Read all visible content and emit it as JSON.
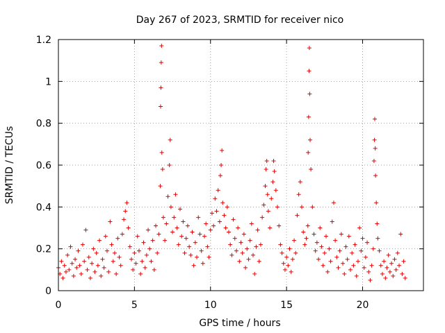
{
  "chart_data": {
    "type": "scatter",
    "title": "Day 267 of 2023, SRMTID for receiver nico",
    "xlabel": "GPS time / hours",
    "ylabel": "SRMTID / TECUs",
    "xlim": [
      0,
      24
    ],
    "ylim": [
      0,
      1.2
    ],
    "xticks": [
      0,
      5,
      10,
      15,
      20
    ],
    "yticks": [
      0,
      0.2,
      0.4,
      0.6,
      0.8,
      1.0,
      1.2
    ],
    "xtick_labels": [
      "0",
      "5",
      "10",
      "15",
      "20"
    ],
    "ytick_labels": [
      "0",
      "0.2",
      "0.4",
      "0.6",
      "0.8",
      "1",
      "1.2"
    ],
    "grid": true,
    "marker": "+",
    "color": "#e00000",
    "series": [
      {
        "name": "SRMTID",
        "points": [
          [
            0.0,
            0.11
          ],
          [
            0.1,
            0.08
          ],
          [
            0.2,
            0.14
          ],
          [
            0.3,
            0.06
          ],
          [
            0.4,
            0.12
          ],
          [
            0.5,
            0.09
          ],
          [
            0.6,
            0.17
          ],
          [
            0.7,
            0.1
          ],
          [
            0.8,
            0.21
          ],
          [
            0.9,
            0.13
          ],
          [
            1.0,
            0.07
          ],
          [
            1.1,
            0.15
          ],
          [
            1.2,
            0.11
          ],
          [
            1.3,
            0.19
          ],
          [
            1.4,
            0.12
          ],
          [
            1.5,
            0.08
          ],
          [
            1.6,
            0.22
          ],
          [
            1.7,
            0.14
          ],
          [
            1.8,
            0.29
          ],
          [
            1.9,
            0.1
          ],
          [
            2.0,
            0.16
          ],
          [
            2.1,
            0.06
          ],
          [
            2.2,
            0.13
          ],
          [
            2.3,
            0.2
          ],
          [
            2.4,
            0.09
          ],
          [
            2.5,
            0.18
          ],
          [
            2.6,
            0.12
          ],
          [
            2.7,
            0.24
          ],
          [
            2.8,
            0.07
          ],
          [
            2.9,
            0.15
          ],
          [
            3.0,
            0.11
          ],
          [
            3.1,
            0.26
          ],
          [
            3.2,
            0.19
          ],
          [
            3.3,
            0.09
          ],
          [
            3.4,
            0.33
          ],
          [
            3.5,
            0.22
          ],
          [
            3.6,
            0.14
          ],
          [
            3.7,
            0.18
          ],
          [
            3.8,
            0.08
          ],
          [
            3.9,
            0.25
          ],
          [
            4.0,
            0.16
          ],
          [
            4.1,
            0.12
          ],
          [
            4.2,
            0.27
          ],
          [
            4.3,
            0.34
          ],
          [
            4.4,
            0.38
          ],
          [
            4.5,
            0.42
          ],
          [
            4.6,
            0.3
          ],
          [
            4.7,
            0.21
          ],
          [
            4.8,
            0.15
          ],
          [
            4.9,
            0.1
          ],
          [
            5.0,
            0.18
          ],
          [
            5.1,
            0.13
          ],
          [
            5.2,
            0.26
          ],
          [
            5.3,
            0.19
          ],
          [
            5.4,
            0.08
          ],
          [
            5.5,
            0.14
          ],
          [
            5.6,
            0.23
          ],
          [
            5.7,
            0.11
          ],
          [
            5.8,
            0.17
          ],
          [
            5.9,
            0.29
          ],
          [
            6.0,
            0.2
          ],
          [
            6.1,
            0.14
          ],
          [
            6.2,
            0.24
          ],
          [
            6.3,
            0.1
          ],
          [
            6.4,
            0.31
          ],
          [
            6.5,
            0.18
          ],
          [
            6.6,
            0.27
          ],
          [
            6.7,
            0.5
          ],
          [
            6.72,
            0.88
          ],
          [
            6.74,
            0.97
          ],
          [
            6.76,
            1.09
          ],
          [
            6.78,
            1.17
          ],
          [
            6.8,
            0.66
          ],
          [
            6.85,
            0.58
          ],
          [
            6.9,
            0.35
          ],
          [
            7.0,
            0.24
          ],
          [
            7.1,
            0.32
          ],
          [
            7.2,
            0.45
          ],
          [
            7.3,
            0.6
          ],
          [
            7.35,
            0.72
          ],
          [
            7.4,
            0.4
          ],
          [
            7.5,
            0.28
          ],
          [
            7.6,
            0.35
          ],
          [
            7.7,
            0.46
          ],
          [
            7.8,
            0.3
          ],
          [
            7.9,
            0.22
          ],
          [
            8.0,
            0.39
          ],
          [
            8.1,
            0.26
          ],
          [
            8.2,
            0.33
          ],
          [
            8.3,
            0.18
          ],
          [
            8.4,
            0.25
          ],
          [
            8.5,
            0.31
          ],
          [
            8.6,
            0.21
          ],
          [
            8.7,
            0.17
          ],
          [
            8.8,
            0.28
          ],
          [
            8.9,
            0.12
          ],
          [
            9.0,
            0.23
          ],
          [
            9.1,
            0.16
          ],
          [
            9.2,
            0.35
          ],
          [
            9.3,
            0.27
          ],
          [
            9.4,
            0.19
          ],
          [
            9.5,
            0.13
          ],
          [
            9.6,
            0.26
          ],
          [
            9.7,
            0.32
          ],
          [
            9.8,
            0.21
          ],
          [
            9.9,
            0.16
          ],
          [
            10.0,
            0.29
          ],
          [
            10.1,
            0.37
          ],
          [
            10.2,
            0.31
          ],
          [
            10.3,
            0.44
          ],
          [
            10.4,
            0.38
          ],
          [
            10.5,
            0.48
          ],
          [
            10.6,
            0.33
          ],
          [
            10.65,
            0.55
          ],
          [
            10.7,
            0.6
          ],
          [
            10.75,
            0.67
          ],
          [
            10.8,
            0.42
          ],
          [
            10.9,
            0.36
          ],
          [
            11.0,
            0.3
          ],
          [
            11.1,
            0.4
          ],
          [
            11.2,
            0.28
          ],
          [
            11.3,
            0.22
          ],
          [
            11.4,
            0.17
          ],
          [
            11.5,
            0.34
          ],
          [
            11.6,
            0.25
          ],
          [
            11.7,
            0.19
          ],
          [
            11.8,
            0.3
          ],
          [
            11.9,
            0.14
          ],
          [
            12.0,
            0.23
          ],
          [
            12.1,
            0.18
          ],
          [
            12.2,
            0.27
          ],
          [
            12.3,
            0.11
          ],
          [
            12.4,
            0.2
          ],
          [
            12.5,
            0.15
          ],
          [
            12.6,
            0.24
          ],
          [
            12.7,
            0.32
          ],
          [
            12.8,
            0.17
          ],
          [
            12.9,
            0.08
          ],
          [
            13.0,
            0.21
          ],
          [
            13.1,
            0.29
          ],
          [
            13.2,
            0.14
          ],
          [
            13.3,
            0.22
          ],
          [
            13.4,
            0.35
          ],
          [
            13.5,
            0.41
          ],
          [
            13.6,
            0.5
          ],
          [
            13.65,
            0.58
          ],
          [
            13.7,
            0.62
          ],
          [
            13.75,
            0.46
          ],
          [
            13.8,
            0.38
          ],
          [
            13.9,
            0.3
          ],
          [
            14.0,
            0.44
          ],
          [
            14.1,
            0.52
          ],
          [
            14.15,
            0.62
          ],
          [
            14.2,
            0.57
          ],
          [
            14.3,
            0.48
          ],
          [
            14.4,
            0.4
          ],
          [
            14.5,
            0.31
          ],
          [
            14.6,
            0.22
          ],
          [
            14.7,
            0.18
          ],
          [
            14.8,
            0.13
          ],
          [
            14.9,
            0.1
          ],
          [
            15.0,
            0.16
          ],
          [
            15.1,
            0.12
          ],
          [
            15.2,
            0.2
          ],
          [
            15.3,
            0.09
          ],
          [
            15.4,
            0.15
          ],
          [
            15.5,
            0.24
          ],
          [
            15.6,
            0.18
          ],
          [
            15.7,
            0.36
          ],
          [
            15.8,
            0.46
          ],
          [
            15.9,
            0.52
          ],
          [
            16.0,
            0.4
          ],
          [
            16.1,
            0.28
          ],
          [
            16.2,
            0.22
          ],
          [
            16.3,
            0.25
          ],
          [
            16.4,
            0.31
          ],
          [
            16.42,
            0.66
          ],
          [
            16.45,
            0.83
          ],
          [
            16.48,
            1.05
          ],
          [
            16.5,
            1.16
          ],
          [
            16.52,
            0.94
          ],
          [
            16.55,
            0.72
          ],
          [
            16.6,
            0.58
          ],
          [
            16.7,
            0.4
          ],
          [
            16.8,
            0.27
          ],
          [
            16.9,
            0.19
          ],
          [
            17.0,
            0.23
          ],
          [
            17.1,
            0.15
          ],
          [
            17.2,
            0.3
          ],
          [
            17.3,
            0.21
          ],
          [
            17.4,
            0.12
          ],
          [
            17.5,
            0.18
          ],
          [
            17.6,
            0.26
          ],
          [
            17.7,
            0.09
          ],
          [
            17.8,
            0.2
          ],
          [
            17.9,
            0.14
          ],
          [
            18.0,
            0.33
          ],
          [
            18.1,
            0.42
          ],
          [
            18.2,
            0.24
          ],
          [
            18.3,
            0.16
          ],
          [
            18.4,
            0.11
          ],
          [
            18.5,
            0.19
          ],
          [
            18.6,
            0.27
          ],
          [
            18.7,
            0.13
          ],
          [
            18.8,
            0.08
          ],
          [
            18.9,
            0.21
          ],
          [
            19.0,
            0.15
          ],
          [
            19.1,
            0.26
          ],
          [
            19.2,
            0.1
          ],
          [
            19.3,
            0.18
          ],
          [
            19.4,
            0.12
          ],
          [
            19.5,
            0.22
          ],
          [
            19.6,
            0.07
          ],
          [
            19.7,
            0.14
          ],
          [
            19.8,
            0.3
          ],
          [
            19.9,
            0.19
          ],
          [
            20.0,
            0.25
          ],
          [
            20.1,
            0.11
          ],
          [
            20.2,
            0.16
          ],
          [
            20.3,
            0.23
          ],
          [
            20.4,
            0.09
          ],
          [
            20.5,
            0.05
          ],
          [
            20.6,
            0.12
          ],
          [
            20.7,
            0.2
          ],
          [
            20.75,
            0.62
          ],
          [
            20.78,
            0.72
          ],
          [
            20.8,
            0.82
          ],
          [
            20.83,
            0.68
          ],
          [
            20.85,
            0.55
          ],
          [
            20.9,
            0.42
          ],
          [
            20.95,
            0.32
          ],
          [
            21.0,
            0.25
          ],
          [
            21.1,
            0.19
          ],
          [
            21.2,
            0.12
          ],
          [
            21.3,
            0.08
          ],
          [
            21.4,
            0.14
          ],
          [
            21.5,
            0.06
          ],
          [
            21.6,
            0.11
          ],
          [
            21.7,
            0.17
          ],
          [
            21.8,
            0.09
          ],
          [
            21.9,
            0.13
          ],
          [
            22.0,
            0.07
          ],
          [
            22.1,
            0.15
          ],
          [
            22.2,
            0.1
          ],
          [
            22.3,
            0.18
          ],
          [
            22.4,
            0.12
          ],
          [
            22.5,
            0.27
          ],
          [
            22.6,
            0.08
          ],
          [
            22.7,
            0.14
          ],
          [
            22.8,
            0.06
          ]
        ]
      }
    ]
  }
}
